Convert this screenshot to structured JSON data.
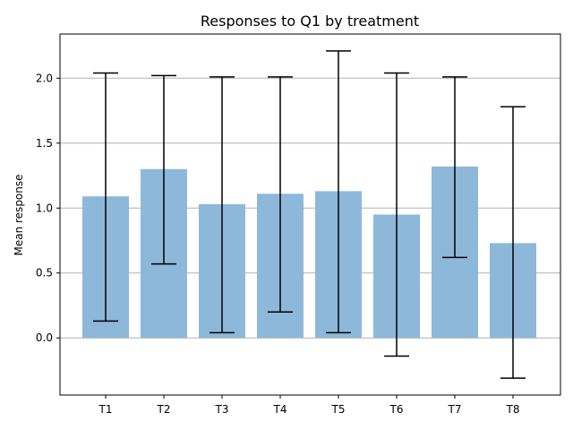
{
  "chart_data": {
    "type": "bar",
    "title": "Responses to Q1 by treatment",
    "xlabel": "",
    "ylabel": "Mean response",
    "categories": [
      "T1",
      "T2",
      "T3",
      "T4",
      "T5",
      "T6",
      "T7",
      "T8"
    ],
    "values": [
      1.09,
      1.3,
      1.03,
      1.11,
      1.13,
      0.95,
      1.32,
      0.73
    ],
    "error_low": [
      0.13,
      0.57,
      0.04,
      0.2,
      0.04,
      -0.14,
      0.62,
      -0.31
    ],
    "error_high": [
      2.04,
      2.02,
      2.01,
      2.01,
      2.21,
      2.04,
      2.01,
      1.78
    ],
    "ylim": [
      -0.44,
      2.34
    ],
    "yticks": [
      "0.0",
      "0.5",
      "1.0",
      "1.5",
      "2.0"
    ],
    "grid": "horizontal",
    "legend": "none"
  },
  "colors": {
    "bar": "#8db8da",
    "error_bar": "#000000",
    "grid": "#b0b0b0"
  }
}
